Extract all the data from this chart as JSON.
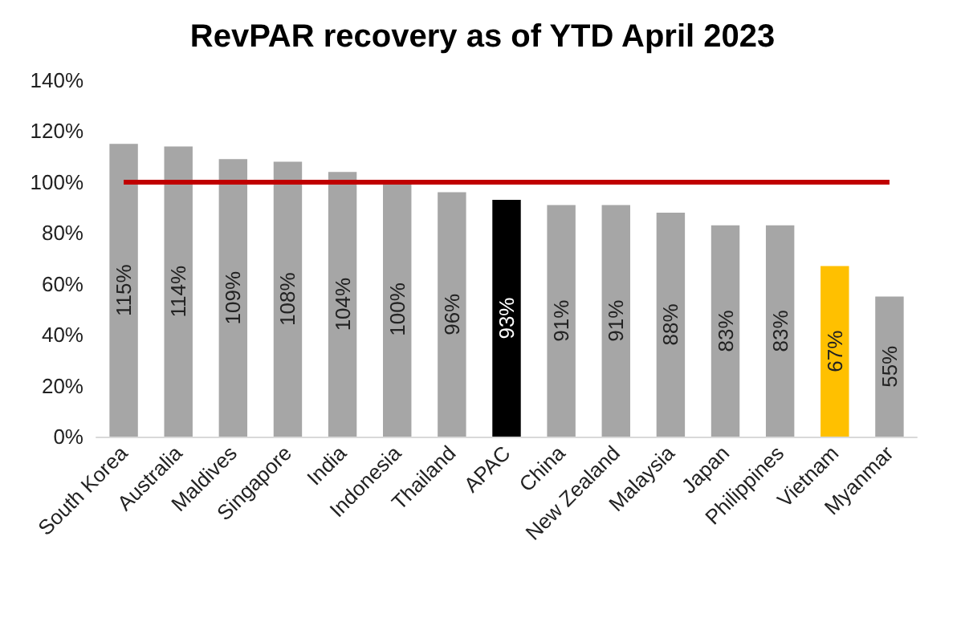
{
  "chart_data": {
    "type": "bar",
    "title": "RevPAR recovery as of YTD April 2023",
    "categories": [
      "South Korea",
      "Australia",
      "Maldives",
      "Singapore",
      "India",
      "Indonesia",
      "Thailand",
      "APAC",
      "China",
      "New Zealand",
      "Malaysia",
      "Japan",
      "Philippines",
      "Vietnam",
      "Myanmar"
    ],
    "values": [
      115,
      114,
      109,
      108,
      104,
      100,
      96,
      93,
      91,
      91,
      88,
      83,
      83,
      67,
      55
    ],
    "colors": [
      "#a6a6a6",
      "#a6a6a6",
      "#a6a6a6",
      "#a6a6a6",
      "#a6a6a6",
      "#a6a6a6",
      "#a6a6a6",
      "#000000",
      "#a6a6a6",
      "#a6a6a6",
      "#a6a6a6",
      "#a6a6a6",
      "#a6a6a6",
      "#ffc000",
      "#a6a6a6"
    ],
    "value_labels": [
      "115%",
      "114%",
      "109%",
      "108%",
      "104%",
      "100%",
      "96%",
      "93%",
      "91%",
      "91%",
      "88%",
      "83%",
      "83%",
      "67%",
      "55%"
    ],
    "ylim": [
      0,
      140
    ],
    "yticks": [
      {
        "value": 0,
        "label": "0%"
      },
      {
        "value": 20,
        "label": "20%"
      },
      {
        "value": 40,
        "label": "40%"
      },
      {
        "value": 60,
        "label": "60%"
      },
      {
        "value": 80,
        "label": "80%"
      },
      {
        "value": 100,
        "label": "100%"
      },
      {
        "value": 120,
        "label": "120%"
      },
      {
        "value": 140,
        "label": "140%"
      }
    ],
    "ref_lines": [
      {
        "axis": "y",
        "value": 100,
        "color": "#c00000"
      }
    ]
  }
}
